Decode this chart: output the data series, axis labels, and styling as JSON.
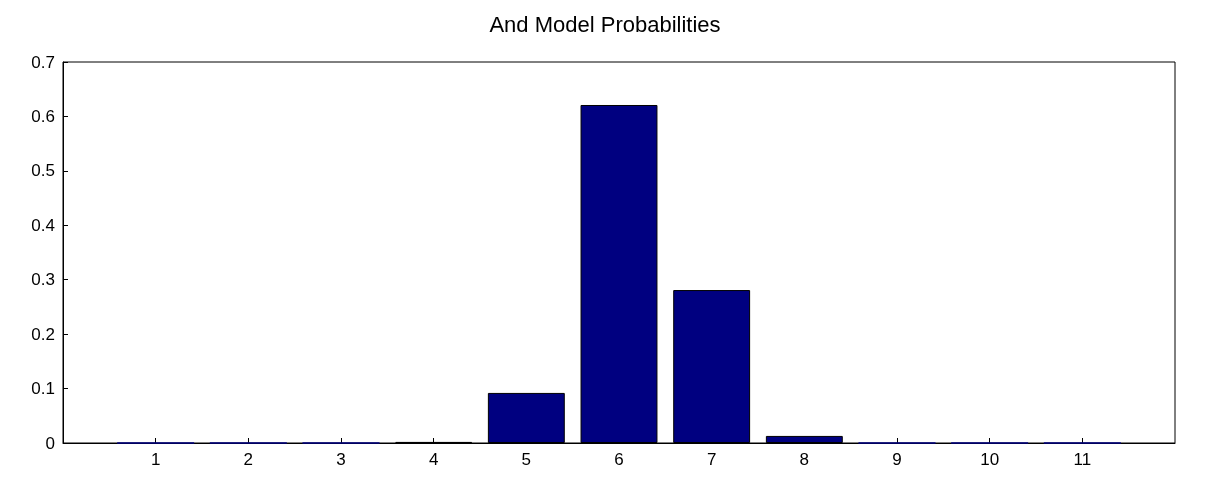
{
  "chart_data": {
    "type": "bar",
    "title": "And Model Probabilities",
    "x": [
      1,
      2,
      3,
      4,
      5,
      6,
      7,
      8,
      9,
      10,
      11
    ],
    "values": [
      0,
      0,
      0,
      0.002,
      0.092,
      0.621,
      0.281,
      0.013,
      0,
      0,
      0
    ],
    "color": "#000080",
    "xlim": [
      0,
      12
    ],
    "xticks": [
      1,
      2,
      3,
      4,
      5,
      6,
      7,
      8,
      9,
      10,
      11
    ],
    "ylim": [
      0,
      0.7
    ],
    "yticks": [
      0,
      0.1,
      0.2,
      0.3,
      0.4,
      0.5,
      0.6,
      0.7
    ],
    "grid": false
  }
}
